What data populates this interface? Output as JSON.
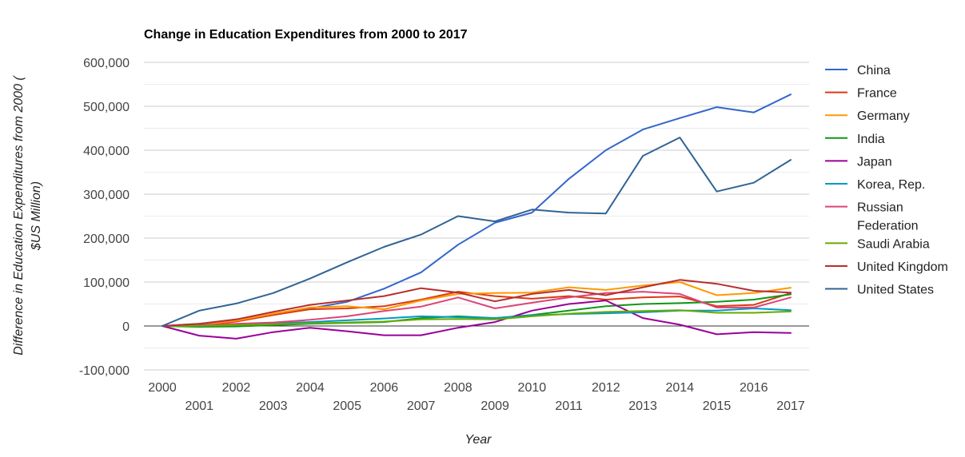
{
  "chart_data": {
    "type": "line",
    "title": "Change in Education Expenditures from 2000 to 2017",
    "xlabel": "Year",
    "ylabel_lines": [
      "Difference in Education Expenditures from 2000 (",
      "$US Million)"
    ],
    "x": [
      "2000",
      "2001",
      "2002",
      "2003",
      "2004",
      "2005",
      "2006",
      "2007",
      "2008",
      "2009",
      "2010",
      "2011",
      "2012",
      "2013",
      "2014",
      "2015",
      "2016",
      "2017"
    ],
    "ylim": [
      -100000,
      600000
    ],
    "yticks": [
      -100000,
      0,
      100000,
      200000,
      300000,
      400000,
      500000,
      600000
    ],
    "ytick_labels": [
      "-100,000",
      "0",
      "100,000",
      "200,000",
      "300,000",
      "400,000",
      "500,000",
      "600,000"
    ],
    "grid": true,
    "legend_position": "right",
    "series": [
      {
        "name": "China",
        "color": "#3366cc",
        "values": [
          0,
          5000,
          15000,
          25000,
          40000,
          55000,
          85000,
          122000,
          185000,
          235000,
          258000,
          335000,
          400000,
          447000,
          473000,
          498000,
          486000,
          527000
        ]
      },
      {
        "name": "France",
        "color": "#dc3912",
        "values": [
          0,
          2000,
          10000,
          25000,
          38000,
          40000,
          45000,
          60000,
          78000,
          68000,
          62000,
          68000,
          60000,
          65000,
          67000,
          45000,
          48000,
          75000
        ]
      },
      {
        "name": "Germany",
        "color": "#ff9900",
        "values": [
          0,
          3000,
          12000,
          28000,
          42000,
          45000,
          38000,
          58000,
          73000,
          75000,
          76000,
          88000,
          82000,
          92000,
          100000,
          70000,
          75000,
          87000
        ]
      },
      {
        "name": "India",
        "color": "#109618",
        "values": [
          0,
          -2000,
          -1000,
          2000,
          5000,
          7000,
          9000,
          18000,
          22000,
          18000,
          25000,
          35000,
          45000,
          50000,
          52000,
          55000,
          60000,
          72000
        ]
      },
      {
        "name": "Japan",
        "color": "#990099",
        "values": [
          0,
          -22000,
          -29000,
          -14000,
          -4000,
          -12000,
          -21000,
          -21000,
          -4000,
          9000,
          35000,
          50000,
          58000,
          18000,
          3000,
          -19000,
          -14000,
          -16000
        ]
      },
      {
        "name": "Korea, Rep.",
        "color": "#0099c6",
        "values": [
          0,
          2000,
          4000,
          6000,
          9000,
          13000,
          17000,
          22000,
          20000,
          18000,
          24000,
          27000,
          29000,
          31000,
          35000,
          35000,
          40000,
          36000
        ]
      },
      {
        "name": "Russian\nFederation",
        "color": "#dd4477",
        "values": [
          0,
          2000,
          5000,
          8000,
          14000,
          22000,
          34000,
          44000,
          65000,
          40000,
          53000,
          65000,
          75000,
          78000,
          73000,
          42000,
          42000,
          65000
        ]
      },
      {
        "name": "Saudi Arabia",
        "color": "#66aa00",
        "values": [
          0,
          0,
          2000,
          4000,
          6000,
          8000,
          10000,
          15000,
          16000,
          15000,
          22000,
          28000,
          32000,
          34000,
          36000,
          30000,
          30000,
          33000
        ]
      },
      {
        "name": "United Kingdom",
        "color": "#b82e2e",
        "values": [
          0,
          5000,
          15000,
          32000,
          48000,
          58000,
          68000,
          86000,
          76000,
          56000,
          73000,
          82000,
          70000,
          88000,
          105000,
          96000,
          80000,
          76000
        ]
      },
      {
        "name": "United States",
        "color": "#316395",
        "values": [
          0,
          35000,
          51000,
          75000,
          108000,
          145000,
          180000,
          208000,
          250000,
          238000,
          265000,
          258000,
          256000,
          387000,
          429000,
          306000,
          326000,
          378000
        ]
      }
    ]
  }
}
